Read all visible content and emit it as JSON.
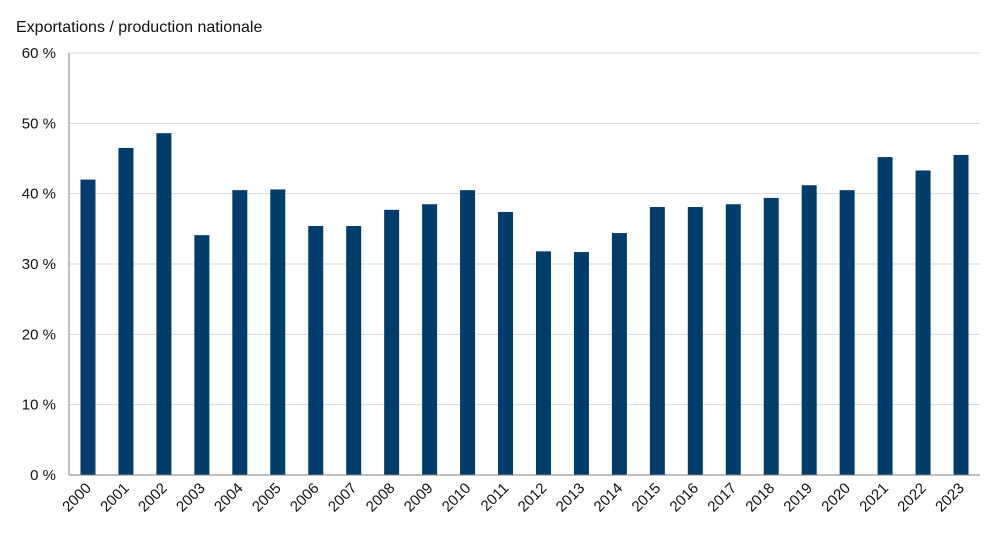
{
  "chart_data": {
    "type": "bar",
    "title": "",
    "xlabel": "",
    "ylabel": "Exportations / production nationale",
    "ylim": [
      0,
      60
    ],
    "yticks": [
      "0 %",
      "10 %",
      "20 %",
      "30 %",
      "40 %",
      "50 %",
      "60 %"
    ],
    "ytick_values": [
      0,
      10,
      20,
      30,
      40,
      50,
      60
    ],
    "grid": true,
    "legend": "none",
    "categories": [
      "2000",
      "2001",
      "2002",
      "2003",
      "2004",
      "2005",
      "2006",
      "2007",
      "2008",
      "2009",
      "2010",
      "2011",
      "2012",
      "2013",
      "2014",
      "2015",
      "2016",
      "2017",
      "2018",
      "2019",
      "2020",
      "2021",
      "2022",
      "2023"
    ],
    "values": [
      42.0,
      46.5,
      48.6,
      34.1,
      40.5,
      40.6,
      35.4,
      35.4,
      37.7,
      38.5,
      40.5,
      37.4,
      31.8,
      31.7,
      34.4,
      38.1,
      38.1,
      38.5,
      39.4,
      41.2,
      40.5,
      45.2,
      43.3,
      45.5
    ],
    "bar_color": "#003d6b"
  }
}
